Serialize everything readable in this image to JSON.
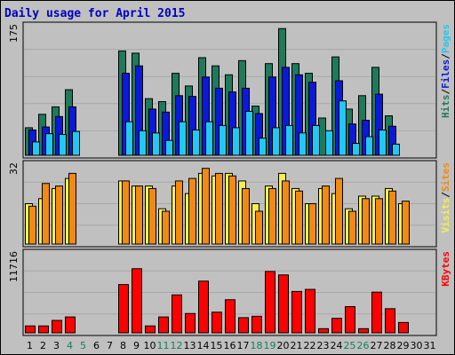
{
  "title": "Daily usage for April 2015",
  "colors": {
    "background": "#c0c0c0",
    "panel": "#c0c0c0",
    "hits": "#1f7a5b",
    "files": "#0b1ad8",
    "pages": "#22c7f2",
    "visits": "#f4f04c",
    "sites": "#f08a12",
    "kbytes": "#ff0000",
    "title": "#0000c0",
    "weekend": "#118058"
  },
  "chart_data": [
    {
      "type": "bar",
      "title": "Daily usage for April 2015",
      "categories": [
        1,
        2,
        3,
        4,
        5,
        6,
        7,
        8,
        9,
        10,
        11,
        12,
        13,
        14,
        15,
        16,
        17,
        18,
        19,
        20,
        21,
        22,
        23,
        24,
        25,
        26,
        27,
        28,
        29,
        30,
        31
      ],
      "weekend_days": [
        4,
        5,
        11,
        12,
        18,
        19,
        25,
        26
      ],
      "ylabel_parts": [
        "Pages",
        "Files",
        "Hits"
      ],
      "ymax_label": "175",
      "ylim": [
        0,
        175
      ],
      "series": [
        {
          "name": "Hits",
          "values": [
            37,
            55,
            65,
            88,
            0,
            0,
            0,
            140,
            137,
            76,
            72,
            110,
            93,
            131,
            120,
            108,
            127,
            66,
            123,
            170,
            123,
            110,
            50,
            132,
            62,
            80,
            118,
            53,
            0,
            0,
            0
          ]
        },
        {
          "name": "Files",
          "values": [
            34,
            38,
            52,
            65,
            0,
            0,
            0,
            110,
            120,
            62,
            58,
            80,
            79,
            105,
            90,
            85,
            90,
            56,
            105,
            118,
            108,
            98,
            0,
            100,
            42,
            47,
            82,
            39,
            0,
            0,
            0
          ]
        },
        {
          "name": "Pages",
          "values": [
            18,
            29,
            28,
            32,
            0,
            0,
            0,
            45,
            33,
            30,
            20,
            45,
            34,
            45,
            40,
            37,
            59,
            23,
            37,
            40,
            30,
            40,
            33,
            73,
            16,
            25,
            34,
            15,
            0,
            0,
            0
          ]
        }
      ]
    },
    {
      "type": "bar",
      "categories": [
        1,
        2,
        3,
        4,
        5,
        6,
        7,
        8,
        9,
        10,
        11,
        12,
        13,
        14,
        15,
        16,
        17,
        18,
        19,
        20,
        21,
        22,
        23,
        24,
        25,
        26,
        27,
        28,
        29,
        30,
        31
      ],
      "ylabel_parts": [
        "Sites",
        "Visits"
      ],
      "ymax_label": "32",
      "ylim": [
        0,
        32
      ],
      "series": [
        {
          "name": "Visits",
          "values": [
            16,
            18,
            22,
            26,
            0,
            0,
            0,
            25,
            23,
            23,
            14,
            23,
            20,
            28,
            27,
            28,
            25,
            16,
            23,
            28,
            22,
            16,
            22,
            20,
            14,
            19,
            19,
            22,
            16,
            0,
            0
          ]
        },
        {
          "name": "Sites",
          "values": [
            15,
            24,
            23,
            28,
            0,
            0,
            0,
            25,
            23,
            22,
            13,
            25,
            26,
            30,
            28,
            27,
            22,
            13,
            22,
            25,
            21,
            16,
            23,
            26,
            13,
            18,
            18,
            21,
            17,
            0,
            0
          ]
        }
      ]
    },
    {
      "type": "bar",
      "categories": [
        1,
        2,
        3,
        4,
        5,
        6,
        7,
        8,
        9,
        10,
        11,
        12,
        13,
        14,
        15,
        16,
        17,
        18,
        19,
        20,
        21,
        22,
        23,
        24,
        25,
        26,
        27,
        28,
        29,
        30,
        31
      ],
      "ylabel_parts": [
        "KBytes"
      ],
      "ymax_label": "11716",
      "ylim": [
        0,
        11716
      ],
      "series": [
        {
          "name": "KBytes",
          "values": [
            1000,
            1000,
            1800,
            2300,
            0,
            0,
            0,
            7000,
            9300,
            1000,
            2300,
            5500,
            2800,
            7500,
            3000,
            4800,
            2200,
            2400,
            8900,
            8400,
            6000,
            6300,
            600,
            2100,
            3800,
            600,
            5900,
            3500,
            1500,
            0,
            0
          ]
        }
      ]
    }
  ]
}
